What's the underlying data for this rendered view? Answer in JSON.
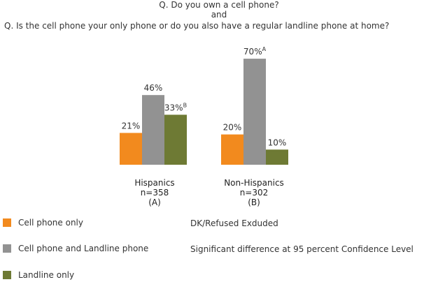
{
  "titles": {
    "line1": "Q. Do you own a cell phone?",
    "line2": "and",
    "line3": "Q. Is the cell phone your only phone or do you also have a regular landline phone at home?"
  },
  "chart_data": {
    "type": "bar",
    "ylim": [
      0,
      100
    ],
    "categories": [
      {
        "name": "Hispanics",
        "n": "n=358",
        "letter": "(A)"
      },
      {
        "name": "Non-Hispanics",
        "n": "n=302",
        "letter": "(B)"
      }
    ],
    "series": [
      {
        "name": "Cell phone only",
        "color": "#f28a1e",
        "values": [
          21,
          20
        ],
        "labels": [
          "21%",
          "20%"
        ],
        "superscripts": [
          "",
          ""
        ]
      },
      {
        "name": "Cell phone and Landline phone",
        "color": "#929292",
        "values": [
          46,
          70
        ],
        "labels": [
          "46%",
          "70%"
        ],
        "superscripts": [
          "",
          "A"
        ]
      },
      {
        "name": "Landline only",
        "color": "#6e7a34",
        "values": [
          33,
          10
        ],
        "labels": [
          "33%",
          "10%"
        ],
        "superscripts": [
          "B",
          ""
        ]
      }
    ]
  },
  "notes": {
    "excluded": "DK/Refused Exduded",
    "significance": "Significant difference at 95 percent Confidence Level"
  }
}
